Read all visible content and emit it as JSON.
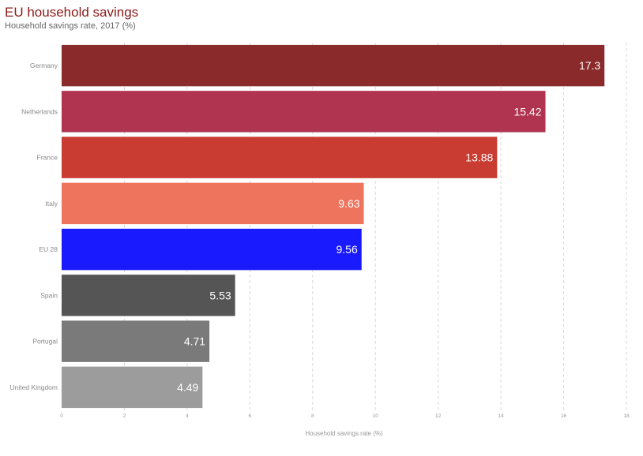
{
  "chart_data": {
    "type": "bar",
    "orientation": "horizontal",
    "title": "EU household savings",
    "subtitle": "Household savings rate, 2017 (%)",
    "xlabel": "Household savings rate (%)",
    "ylabel": "",
    "xlim": [
      0,
      18
    ],
    "xticks": [
      0,
      2,
      4,
      6,
      8,
      10,
      12,
      14,
      16,
      18
    ],
    "grid": true,
    "legend": "none",
    "categories": [
      "Germany",
      "Netherlands",
      "France",
      "Italy",
      "EU 28",
      "Spain",
      "Portugal",
      "United Kingdom"
    ],
    "values": [
      17.3,
      15.42,
      13.88,
      9.63,
      9.56,
      5.53,
      4.71,
      4.49
    ],
    "value_labels": [
      "17.3",
      "15.42",
      "13.88",
      "9.63",
      "9.56",
      "5.53",
      "4.71",
      "4.49"
    ],
    "colors": [
      "#8b2a2a",
      "#b03350",
      "#c93c32",
      "#ef745e",
      "#1a1aff",
      "#555555",
      "#7a7a7a",
      "#9c9c9c"
    ]
  }
}
